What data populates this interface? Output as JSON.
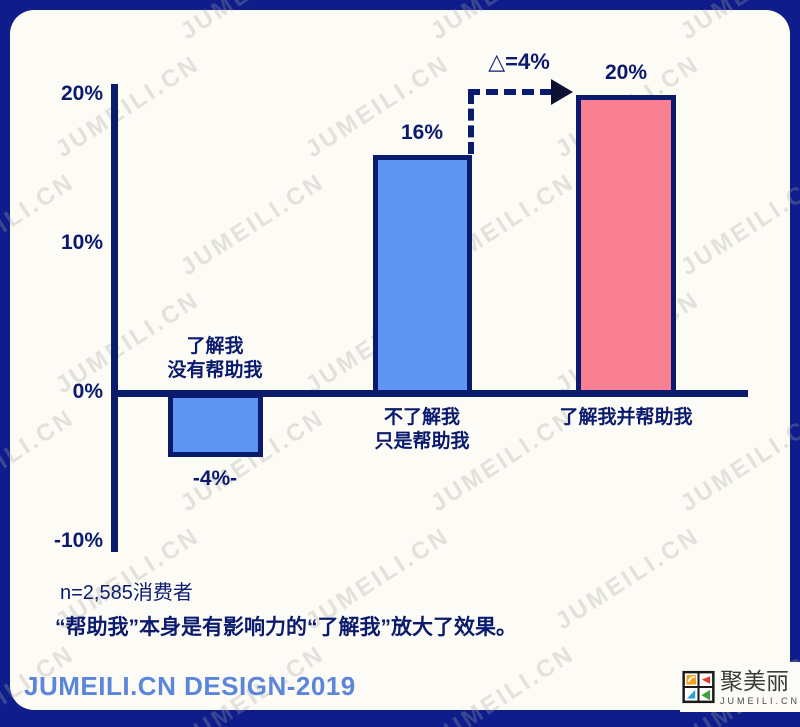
{
  "page": {
    "background": "#0e1c8c",
    "card_background": "#fdfbf6"
  },
  "colors": {
    "navy_text": "#0a1b6e",
    "frame_navy": "#0e1c8c",
    "bar_blue": "#5e94f2",
    "bar_pink": "#f97f92",
    "footer_blue": "#5b86db"
  },
  "watermark": {
    "text": "JUMEILI.CN"
  },
  "chart_data": {
    "type": "bar",
    "title": "",
    "xlabel": "",
    "ylabel": "",
    "categories": [
      [
        "了解我",
        "没有帮助我"
      ],
      [
        "不了解我",
        "只是帮助我"
      ],
      [
        "了解我并帮助我"
      ]
    ],
    "values": [
      -4,
      16,
      20
    ],
    "value_labels": [
      "-4%-",
      "16%",
      "20%"
    ],
    "bar_colors": [
      "#5e94f2",
      "#5e94f2",
      "#f97f92"
    ],
    "y_ticks": [
      {
        "label": "20%",
        "value": 20
      },
      {
        "label": "10%",
        "value": 10
      },
      {
        "label": "0%",
        "value": 0
      },
      {
        "label": "-10%",
        "value": -10
      }
    ],
    "ylim": [
      -10,
      20
    ],
    "grid": false,
    "legend": false,
    "annotation": {
      "text": "△=4%"
    }
  },
  "notes": {
    "sample_size": "n=2,585消费者",
    "insight": "“帮助我”本身是有影响力的“了解我”放大了效果。"
  },
  "footer": {
    "credit": "JUMEILI.CN DESIGN-2019"
  },
  "logo": {
    "name": "聚美丽",
    "domain": "JUMEILI.CN"
  }
}
